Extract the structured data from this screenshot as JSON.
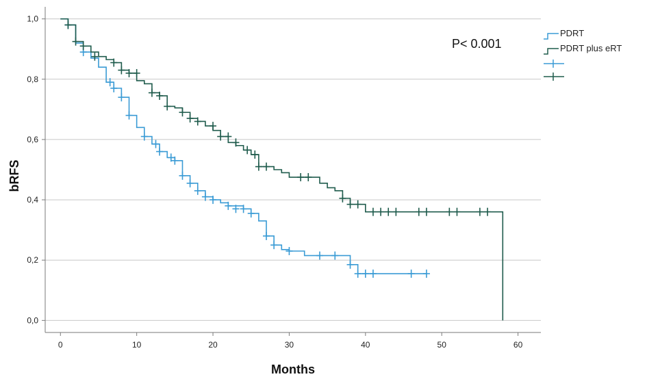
{
  "chart_data": {
    "type": "line",
    "subtype": "kaplan-meier",
    "xlabel": "Months",
    "ylabel": "bRFS",
    "xlim": [
      -2,
      63
    ],
    "ylim": [
      -0.04,
      1.04
    ],
    "x_ticks": [
      0,
      10,
      20,
      30,
      40,
      50,
      60
    ],
    "x_tick_labels": [
      "0",
      "10",
      "20",
      "30",
      "40",
      "50",
      "60"
    ],
    "y_ticks": [
      0,
      0.2,
      0.4,
      0.6,
      0.8,
      1.0
    ],
    "y_tick_labels": [
      "0,0",
      "0,2",
      "0,4",
      "0,6",
      "0,8",
      "1,0"
    ],
    "grid": "horizontal",
    "annotation": "P< 0.001",
    "legend_position": "top-right",
    "legend_censor_labels": [
      "",
      ""
    ],
    "series": [
      {
        "name": "PDRT",
        "color": "#3a9bd5",
        "steps": [
          [
            0,
            1.0
          ],
          [
            1,
            0.98
          ],
          [
            2,
            0.92
          ],
          [
            3,
            0.89
          ],
          [
            4,
            0.87
          ],
          [
            5,
            0.84
          ],
          [
            6,
            0.79
          ],
          [
            7,
            0.77
          ],
          [
            8,
            0.74
          ],
          [
            9,
            0.68
          ],
          [
            10,
            0.64
          ],
          [
            11,
            0.61
          ],
          [
            12,
            0.585
          ],
          [
            13,
            0.56
          ],
          [
            14,
            0.54
          ],
          [
            15,
            0.53
          ],
          [
            16,
            0.48
          ],
          [
            17,
            0.455
          ],
          [
            18,
            0.43
          ],
          [
            19,
            0.41
          ],
          [
            20,
            0.4
          ],
          [
            21,
            0.39
          ],
          [
            22,
            0.38
          ],
          [
            24,
            0.37
          ],
          [
            25,
            0.355
          ],
          [
            26,
            0.33
          ],
          [
            27,
            0.28
          ],
          [
            28,
            0.25
          ],
          [
            29,
            0.235
          ],
          [
            30,
            0.23
          ],
          [
            32,
            0.215
          ],
          [
            38,
            0.185
          ],
          [
            39,
            0.155
          ],
          [
            48,
            0.155
          ]
        ],
        "censored": [
          [
            1,
            0.98
          ],
          [
            3,
            0.89
          ],
          [
            6.5,
            0.79
          ],
          [
            7,
            0.77
          ],
          [
            8,
            0.74
          ],
          [
            9,
            0.68
          ],
          [
            11,
            0.61
          ],
          [
            12.5,
            0.585
          ],
          [
            13,
            0.56
          ],
          [
            14.5,
            0.54
          ],
          [
            15,
            0.53
          ],
          [
            16,
            0.48
          ],
          [
            17,
            0.455
          ],
          [
            18,
            0.43
          ],
          [
            19,
            0.41
          ],
          [
            20,
            0.4
          ],
          [
            22,
            0.38
          ],
          [
            23,
            0.37
          ],
          [
            24,
            0.37
          ],
          [
            25,
            0.355
          ],
          [
            27,
            0.28
          ],
          [
            28,
            0.25
          ],
          [
            30,
            0.23
          ],
          [
            34,
            0.215
          ],
          [
            36,
            0.215
          ],
          [
            38,
            0.185
          ],
          [
            39,
            0.155
          ],
          [
            40,
            0.155
          ],
          [
            41,
            0.155
          ],
          [
            46,
            0.155
          ],
          [
            48,
            0.155
          ]
        ]
      },
      {
        "name": "PDRT plus eRT",
        "color": "#1f5b4c",
        "steps": [
          [
            0,
            1.0
          ],
          [
            1,
            0.98
          ],
          [
            2,
            0.925
          ],
          [
            3,
            0.91
          ],
          [
            4,
            0.89
          ],
          [
            5,
            0.875
          ],
          [
            6,
            0.865
          ],
          [
            7,
            0.855
          ],
          [
            8,
            0.83
          ],
          [
            9,
            0.82
          ],
          [
            10,
            0.795
          ],
          [
            11,
            0.785
          ],
          [
            12,
            0.755
          ],
          [
            13,
            0.745
          ],
          [
            14,
            0.71
          ],
          [
            15,
            0.705
          ],
          [
            16,
            0.69
          ],
          [
            17,
            0.67
          ],
          [
            18,
            0.66
          ],
          [
            19,
            0.645
          ],
          [
            20,
            0.63
          ],
          [
            21,
            0.61
          ],
          [
            22,
            0.59
          ],
          [
            23,
            0.58
          ],
          [
            24,
            0.565
          ],
          [
            25,
            0.55
          ],
          [
            26,
            0.51
          ],
          [
            28,
            0.5
          ],
          [
            29,
            0.49
          ],
          [
            30,
            0.475
          ],
          [
            34,
            0.455
          ],
          [
            35,
            0.44
          ],
          [
            36,
            0.43
          ],
          [
            37,
            0.405
          ],
          [
            38,
            0.385
          ],
          [
            40,
            0.36
          ],
          [
            58,
            0.0
          ]
        ],
        "censored": [
          [
            1,
            0.98
          ],
          [
            2,
            0.925
          ],
          [
            3,
            0.91
          ],
          [
            4.5,
            0.875
          ],
          [
            7,
            0.855
          ],
          [
            8,
            0.83
          ],
          [
            9,
            0.82
          ],
          [
            10,
            0.82
          ],
          [
            12,
            0.755
          ],
          [
            13,
            0.745
          ],
          [
            14,
            0.71
          ],
          [
            16,
            0.69
          ],
          [
            17,
            0.67
          ],
          [
            18,
            0.66
          ],
          [
            20,
            0.645
          ],
          [
            21,
            0.61
          ],
          [
            22,
            0.61
          ],
          [
            23,
            0.59
          ],
          [
            24.5,
            0.565
          ],
          [
            25.5,
            0.55
          ],
          [
            26,
            0.51
          ],
          [
            27,
            0.51
          ],
          [
            31.5,
            0.475
          ],
          [
            32.5,
            0.475
          ],
          [
            37,
            0.405
          ],
          [
            38,
            0.385
          ],
          [
            39,
            0.385
          ],
          [
            41,
            0.36
          ],
          [
            42,
            0.36
          ],
          [
            43,
            0.36
          ],
          [
            44,
            0.36
          ],
          [
            47,
            0.36
          ],
          [
            48,
            0.36
          ],
          [
            51,
            0.36
          ],
          [
            52,
            0.36
          ],
          [
            55,
            0.36
          ],
          [
            56,
            0.36
          ]
        ]
      }
    ]
  }
}
